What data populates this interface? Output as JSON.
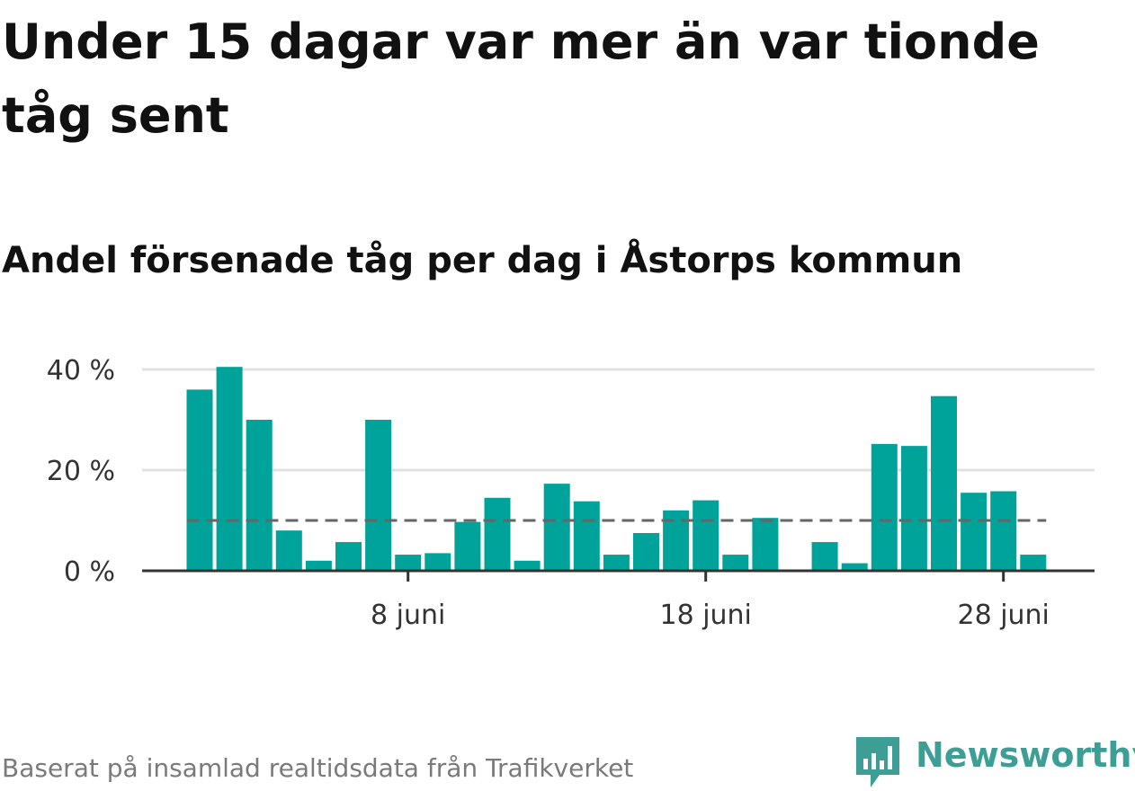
{
  "title": "Under 15 dagar var mer än var tionde tåg sent",
  "subtitle": "Andel försenade tåg per dag i Åstorps kommun",
  "footer": "Baserat på insamlad realtidsdata från Trafikverket",
  "brand": {
    "name": "Newsworthy",
    "icon": "newsworthy-bar-chart-logo-icon",
    "color": "#3d9e95"
  },
  "colors": {
    "bar": "#00a39a",
    "reference_line": "#666666",
    "grid": "#e0e0e0",
    "axis": "#333333"
  },
  "chart_data": {
    "type": "bar",
    "x_unit": "day of June",
    "days": [
      1,
      2,
      3,
      4,
      5,
      6,
      7,
      8,
      9,
      10,
      11,
      12,
      13,
      14,
      15,
      16,
      17,
      18,
      19,
      20,
      21,
      22,
      23,
      24,
      25,
      26,
      27,
      28,
      29
    ],
    "values": [
      36,
      40.5,
      30,
      8,
      2,
      5.7,
      30,
      3.2,
      3.5,
      9.7,
      14.5,
      2,
      17.3,
      13.8,
      3.2,
      7.5,
      12,
      14,
      3.2,
      10.5,
      0,
      5.7,
      1.5,
      25.2,
      24.8,
      34.7,
      15.5,
      15.8,
      3.2
    ],
    "reference_value": 10,
    "ylim": [
      0,
      40
    ],
    "y_ticks": [
      {
        "value": 0,
        "label": "0 %"
      },
      {
        "value": 20,
        "label": "20 %"
      },
      {
        "value": 40,
        "label": "40 %"
      }
    ],
    "x_ticks": [
      {
        "day": 8,
        "label": "8 juni"
      },
      {
        "day": 18,
        "label": "18 juni"
      },
      {
        "day": 28,
        "label": "28 juni"
      }
    ],
    "grid": true,
    "legend": "none"
  }
}
